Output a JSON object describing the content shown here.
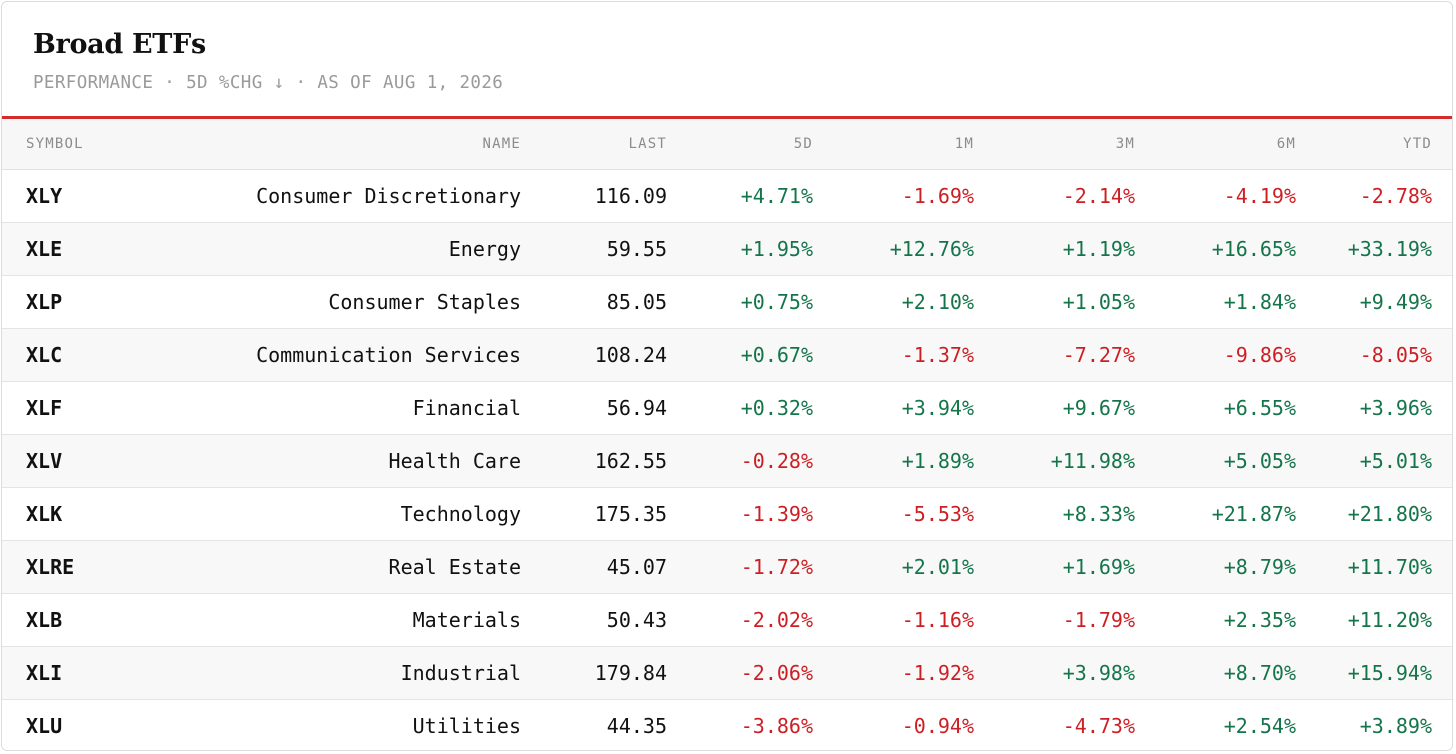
{
  "header": {
    "title": "Broad ETFs",
    "subtitle": "PERFORMANCE · 5D %CHG ↓ · AS OF AUG 1, 2026"
  },
  "colors": {
    "accent": "#d42b2b",
    "positive": "#14744a",
    "negative": "#cc1f24"
  },
  "table": {
    "columns": [
      "SYMBOL",
      "NAME",
      "LAST",
      "5D",
      "1M",
      "3M",
      "6M",
      "YTD"
    ],
    "rows": [
      {
        "symbol": "XLY",
        "name": "Consumer Discretionary",
        "last": "116.09",
        "d5": "+4.71%",
        "m1": "-1.69%",
        "m3": "-2.14%",
        "m6": "-4.19%",
        "ytd": "-2.78%"
      },
      {
        "symbol": "XLE",
        "name": "Energy",
        "last": "59.55",
        "d5": "+1.95%",
        "m1": "+12.76%",
        "m3": "+1.19%",
        "m6": "+16.65%",
        "ytd": "+33.19%"
      },
      {
        "symbol": "XLP",
        "name": "Consumer Staples",
        "last": "85.05",
        "d5": "+0.75%",
        "m1": "+2.10%",
        "m3": "+1.05%",
        "m6": "+1.84%",
        "ytd": "+9.49%"
      },
      {
        "symbol": "XLC",
        "name": "Communication Services",
        "last": "108.24",
        "d5": "+0.67%",
        "m1": "-1.37%",
        "m3": "-7.27%",
        "m6": "-9.86%",
        "ytd": "-8.05%"
      },
      {
        "symbol": "XLF",
        "name": "Financial",
        "last": "56.94",
        "d5": "+0.32%",
        "m1": "+3.94%",
        "m3": "+9.67%",
        "m6": "+6.55%",
        "ytd": "+3.96%"
      },
      {
        "symbol": "XLV",
        "name": "Health Care",
        "last": "162.55",
        "d5": "-0.28%",
        "m1": "+1.89%",
        "m3": "+11.98%",
        "m6": "+5.05%",
        "ytd": "+5.01%"
      },
      {
        "symbol": "XLK",
        "name": "Technology",
        "last": "175.35",
        "d5": "-1.39%",
        "m1": "-5.53%",
        "m3": "+8.33%",
        "m6": "+21.87%",
        "ytd": "+21.80%"
      },
      {
        "symbol": "XLRE",
        "name": "Real Estate",
        "last": "45.07",
        "d5": "-1.72%",
        "m1": "+2.01%",
        "m3": "+1.69%",
        "m6": "+8.79%",
        "ytd": "+11.70%"
      },
      {
        "symbol": "XLB",
        "name": "Materials",
        "last": "50.43",
        "d5": "-2.02%",
        "m1": "-1.16%",
        "m3": "-1.79%",
        "m6": "+2.35%",
        "ytd": "+11.20%"
      },
      {
        "symbol": "XLI",
        "name": "Industrial",
        "last": "179.84",
        "d5": "-2.06%",
        "m1": "-1.92%",
        "m3": "+3.98%",
        "m6": "+8.70%",
        "ytd": "+15.94%"
      },
      {
        "symbol": "XLU",
        "name": "Utilities",
        "last": "44.35",
        "d5": "-3.86%",
        "m1": "-0.94%",
        "m3": "-4.73%",
        "m6": "+2.54%",
        "ytd": "+3.89%"
      }
    ]
  }
}
